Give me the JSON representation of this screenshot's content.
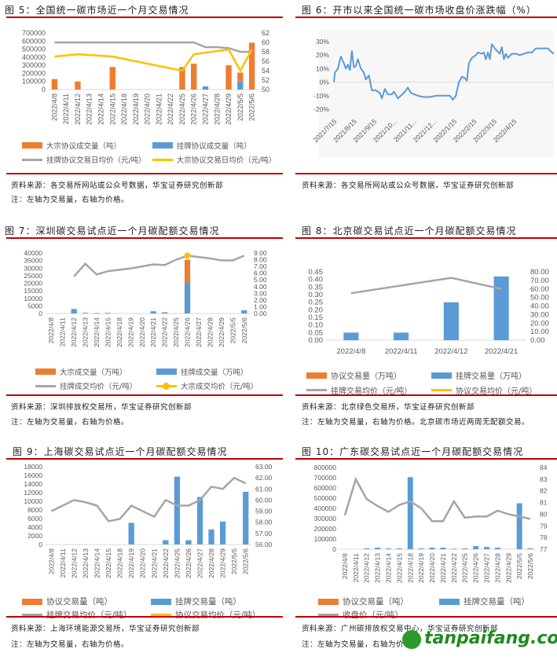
{
  "colors": {
    "orange": "#ED7D31",
    "blue": "#5B9BD5",
    "gray": "#A5A5A5",
    "yellow": "#FFC000",
    "rule": "#C00000"
  },
  "watermark": "tanpaifang.com",
  "chart_data": [
    {
      "id": "fig5",
      "type": "bar",
      "title": "图 5：全国统一碳市场近一个月交易情况",
      "categories": [
        "2022/4/8",
        "2022/4/11",
        "2022/4/12",
        "2022/4/13",
        "2022/4/14",
        "2022/4/15",
        "2022/4/18",
        "2022/4/19",
        "2022/4/20",
        "2022/4/21",
        "2022/4/22",
        "2022/4/25",
        "2022/4/26",
        "2022/4/27",
        "2022/4/28",
        "2022/4/29",
        "2022/5/5",
        "2022/5/6"
      ],
      "left_axis": {
        "range": [
          0,
          700000
        ],
        "ticks": [
          "0",
          "100000",
          "200000",
          "300000",
          "400000",
          "500000",
          "600000",
          "700000"
        ]
      },
      "right_axis": {
        "range": [
          50,
          62
        ],
        "ticks": [
          "50",
          "52",
          "54",
          "56",
          "58",
          "60",
          "62"
        ]
      },
      "bars": [
        {
          "name": "大宗协议成交量（吨）",
          "color": "#ED7D31",
          "values": [
            130000,
            null,
            100000,
            null,
            null,
            280000,
            null,
            null,
            null,
            null,
            null,
            280000,
            320000,
            null,
            null,
            300000,
            110000,
            580000
          ]
        },
        {
          "name": "挂牌协议成交量（吨）",
          "color": "#5B9BD5",
          "values": [
            null,
            null,
            null,
            null,
            null,
            null,
            null,
            null,
            null,
            null,
            null,
            null,
            null,
            40000,
            null,
            null,
            100000,
            null
          ]
        }
      ],
      "lines": [
        {
          "name": "挂牌协议交易日均价（元/吨）",
          "color": "#A5A5A5",
          "values": [
            60,
            60,
            60,
            60,
            60,
            60,
            60,
            60,
            60,
            60,
            60,
            60,
            60,
            59,
            59,
            58.8,
            58,
            58
          ]
        },
        {
          "name": "大宗协议交易日均价（元/吨）",
          "color": "#FFC000",
          "values": [
            57,
            null,
            57.5,
            null,
            null,
            57,
            null,
            null,
            null,
            null,
            null,
            54,
            57.5,
            null,
            null,
            58.5,
            54,
            58.5
          ]
        }
      ],
      "source": "资料来源：各交易所网站或公众号数据，华宝证券研究创新部",
      "note": "注：左轴为交易量，右轴为价格。"
    },
    {
      "id": "fig6",
      "type": "line",
      "title": "图 6：开市以来全国统一碳市场收盘价涨跌幅（%）",
      "x_ticks": [
        "2021/7/15",
        "2021/8/15",
        "2021/9/15",
        "2021/10...",
        "2021/11...",
        "2021/12...",
        "2022/1/15",
        "2022/2/15",
        "2022/3/15",
        "2022/4/15"
      ],
      "y_axis": {
        "range": [
          -20,
          30
        ],
        "ticks": [
          "-20%",
          "-10%",
          "0%",
          "10%",
          "20%",
          "30%"
        ]
      },
      "series": [
        {
          "name": "收盘价涨跌幅",
          "color": "#5B9BD5",
          "x_unit": "months since 2021/7/15",
          "points": [
            [
              0,
              0
            ],
            [
              0.05,
              7
            ],
            [
              0.2,
              10
            ],
            [
              0.35,
              19
            ],
            [
              0.5,
              14
            ],
            [
              0.6,
              10
            ],
            [
              0.7,
              13
            ],
            [
              0.8,
              9
            ],
            [
              0.9,
              23
            ],
            [
              1.0,
              11
            ],
            [
              1.1,
              12
            ],
            [
              1.2,
              17
            ],
            [
              1.35,
              10
            ],
            [
              1.5,
              7
            ],
            [
              1.6,
              2
            ],
            [
              1.75,
              5
            ],
            [
              1.9,
              -6
            ],
            [
              2.1,
              -6
            ],
            [
              2.3,
              -8
            ],
            [
              2.4,
              -12
            ],
            [
              2.55,
              -5
            ],
            [
              2.7,
              -9
            ],
            [
              2.9,
              -9
            ],
            [
              3.0,
              -7
            ],
            [
              3.2,
              -12
            ],
            [
              3.5,
              -8
            ],
            [
              3.7,
              -4
            ],
            [
              3.85,
              -8
            ],
            [
              4.2,
              -10
            ],
            [
              4.5,
              -11
            ],
            [
              4.8,
              -11
            ],
            [
              5.1,
              -10
            ],
            [
              5.5,
              -10
            ],
            [
              5.8,
              -10
            ],
            [
              5.95,
              -13
            ],
            [
              6.1,
              -10
            ],
            [
              6.25,
              0
            ],
            [
              6.4,
              4
            ],
            [
              6.55,
              3
            ],
            [
              6.65,
              1
            ],
            [
              6.75,
              14
            ],
            [
              6.9,
              18
            ],
            [
              7.1,
              20
            ],
            [
              7.2,
              22
            ],
            [
              7.4,
              21
            ],
            [
              7.5,
              22
            ],
            [
              7.6,
              17
            ],
            [
              7.7,
              22
            ],
            [
              7.8,
              17
            ],
            [
              7.9,
              28
            ],
            [
              8.1,
              24
            ],
            [
              8.3,
              21
            ],
            [
              8.4,
              26
            ],
            [
              8.5,
              17
            ],
            [
              8.6,
              21
            ],
            [
              8.7,
              18
            ],
            [
              8.9,
              21
            ],
            [
              9.1,
              21
            ],
            [
              9.3,
              20
            ],
            [
              9.5,
              21
            ],
            [
              9.7,
              22
            ],
            [
              9.9,
              22
            ],
            [
              10.1,
              25
            ],
            [
              10.4,
              25
            ],
            [
              10.7,
              25
            ],
            [
              10.9,
              22
            ],
            [
              11.0,
              21
            ]
          ]
        }
      ],
      "source": "资料来源：各交易所网站或公众号数据，华宝证券研究创新部"
    },
    {
      "id": "fig7",
      "type": "bar",
      "title": "图 7：深圳碳交易试点近一个月碳配额交易情况",
      "categories": [
        "2022/4/8",
        "2022/4/11",
        "2022/4/12",
        "2022/4/13",
        "2022/4/14",
        "2022/4/15",
        "2022/4/18",
        "2022/4/19",
        "2022/4/20",
        "2022/4/21",
        "2022/4/22",
        "2022/4/25",
        "2022/4/26",
        "2022/4/27",
        "2022/4/28",
        "2022/4/29",
        "2022/5/5",
        "2022/5/6"
      ],
      "left_axis": {
        "range": [
          0,
          40000
        ],
        "ticks": [
          "0",
          "5000",
          "10000",
          "15000",
          "20000",
          "25000",
          "30000",
          "35000",
          "40000"
        ]
      },
      "right_axis": {
        "range": [
          0,
          9
        ],
        "ticks": [
          "0.00",
          "1.00",
          "2.00",
          "3.00",
          "4.00",
          "5.00",
          "6.00",
          "7.00",
          "8.00",
          "9.00"
        ]
      },
      "bars": [
        {
          "name": "大宗成交量（万吨）",
          "color": "#ED7D31",
          "values": [
            null,
            null,
            null,
            null,
            null,
            null,
            null,
            null,
            null,
            null,
            null,
            null,
            15000,
            null,
            null,
            null,
            null,
            null
          ]
        },
        {
          "name": "挂牌成交量（万吨）",
          "color": "#5B9BD5",
          "values": [
            null,
            null,
            3000,
            500,
            300,
            400,
            null,
            null,
            null,
            1500,
            800,
            null,
            20500,
            null,
            null,
            null,
            null,
            2200
          ]
        }
      ],
      "lines": [
        {
          "name": "挂牌成交均价（元/吨）",
          "color": "#A5A5A5",
          "values": [
            null,
            null,
            5.5,
            7.4,
            5.8,
            6.3,
            6.5,
            6.7,
            7.0,
            7.3,
            7.2,
            8.0,
            8.6,
            8.4,
            8.2,
            7.9,
            7.9,
            8.6
          ]
        },
        {
          "name": "大宗成交均价（元/吨）",
          "color": "#FFC000",
          "marker": true,
          "values": [
            null,
            null,
            null,
            null,
            null,
            null,
            null,
            null,
            null,
            null,
            null,
            null,
            8.6,
            null,
            null,
            null,
            null,
            null
          ]
        }
      ],
      "source": "资料来源：深圳排放权交易所，华宝证券研究创新部",
      "note": "注：左轴为交易量，右轴为价格。"
    },
    {
      "id": "fig8",
      "type": "bar",
      "title": "图 8：北京碳交易试点近一个月碳配额交易情况",
      "categories": [
        "2022/4/8",
        "2022/4/11",
        "2022/4/12",
        "2022/4/21"
      ],
      "left_axis": {
        "range": [
          0,
          0.45
        ],
        "ticks": [
          "0.00",
          "0.05",
          "0.10",
          "0.15",
          "0.20",
          "0.25",
          "0.30",
          "0.35",
          "0.40",
          "0.45"
        ]
      },
      "right_axis": {
        "range": [
          0,
          80
        ],
        "ticks": [
          "0.00",
          "10.00",
          "20.00",
          "30.00",
          "40.00",
          "50.00",
          "60.00",
          "70.00",
          "80.00"
        ]
      },
      "bars": [
        {
          "name": "协议交易量（万吨）",
          "color": "#ED7D31",
          "values": [
            null,
            null,
            null,
            null
          ]
        },
        {
          "name": "挂牌交易量（万吨）",
          "color": "#5B9BD5",
          "values": [
            0.05,
            0.05,
            0.25,
            0.42
          ]
        }
      ],
      "lines": [
        {
          "name": "挂牌交易均价（元/吨）",
          "color": "#A5A5A5",
          "values": [
            55,
            64,
            73,
            60
          ]
        },
        {
          "name": "协议交易均价（元/吨）",
          "color": "#FFC000",
          "values": [
            null,
            null,
            null,
            null
          ]
        }
      ],
      "source": "资料来源：北京绿色交易所，华宝证券研究创新部",
      "note": "注：左轴为交易量，右轴为价格。北京碳市场近两周无配额交易。"
    },
    {
      "id": "fig9",
      "type": "bar",
      "title": "图 9：上海碳交易试点近一个月碳配额交易情况",
      "categories": [
        "2022/4/8",
        "2022/4/11",
        "2022/4/12",
        "2022/4/13",
        "2022/4/14",
        "2022/4/15",
        "2022/4/18",
        "2022/4/19",
        "2022/4/20",
        "2022/4/21",
        "2022/4/22",
        "2022/4/25",
        "2022/4/26",
        "2022/4/27",
        "2022/4/28",
        "2022/4/29",
        "2022/5/5",
        "2022/5/6"
      ],
      "left_axis": {
        "range": [
          0,
          18000
        ],
        "ticks": [
          "0",
          "2000",
          "4000",
          "6000",
          "8000",
          "10000",
          "12000",
          "14000",
          "16000",
          "18000"
        ]
      },
      "right_axis": {
        "range": [
          56,
          63
        ],
        "ticks": [
          "56.00",
          "57.00",
          "58.00",
          "59.00",
          "60.00",
          "61.00",
          "62.00",
          "63.00"
        ]
      },
      "bars": [
        {
          "name": "协议交易量（吨）",
          "color": "#ED7D31",
          "values": [
            null,
            null,
            null,
            null,
            null,
            null,
            null,
            null,
            null,
            null,
            null,
            null,
            null,
            null,
            null,
            null,
            null,
            null
          ]
        },
        {
          "name": "挂牌交易量（吨）",
          "color": "#5B9BD5",
          "values": [
            null,
            null,
            null,
            null,
            null,
            null,
            null,
            5000,
            null,
            null,
            1000,
            15700,
            1000,
            11000,
            3500,
            5300,
            null,
            12200
          ]
        }
      ],
      "lines": [
        {
          "name": "挂牌交易均价（元/吨）",
          "color": "#A5A5A5",
          "values": [
            59.0,
            59.5,
            60.0,
            59.8,
            59.5,
            58.1,
            58.3,
            59.5,
            59.0,
            58.5,
            60.0,
            59.5,
            59.5,
            60.0,
            61.2,
            61.0,
            62.0,
            61.5
          ]
        },
        {
          "name": "协议交易均价（元/吨）",
          "color": "#FFC000",
          "values": [
            null,
            null,
            null,
            null,
            null,
            null,
            null,
            null,
            null,
            null,
            null,
            null,
            null,
            null,
            null,
            null,
            null,
            null
          ]
        }
      ],
      "source": "资料来源：上海环境能源交易所，华宝证券研究创新部",
      "note": "注：左轴为交易量，右轴为价格。"
    },
    {
      "id": "fig10",
      "type": "bar",
      "title": "图 10：广东碳交易试点近一个月碳配额交易情况",
      "categories": [
        "2022/4/8",
        "2022/4/11",
        "2022/4/12",
        "2022/4/13",
        "2022/4/14",
        "2022/4/15",
        "2022/4/18",
        "2022/4/19",
        "2022/4/20",
        "2022/4/21",
        "2022/4/22",
        "2022/4/25",
        "2022/4/26",
        "2022/4/27",
        "2022/4/28",
        "2022/4/29",
        "2022/5/5",
        "2022/5/6"
      ],
      "left_axis": {
        "range": [
          0,
          800000
        ],
        "ticks": [
          "0",
          "100000",
          "200000",
          "300000",
          "400000",
          "500000",
          "600000",
          "700000",
          "800000"
        ]
      },
      "right_axis": {
        "range": [
          77,
          84
        ],
        "ticks": [
          "77",
          "78",
          "79",
          "80",
          "81",
          "82",
          "83",
          "84"
        ]
      },
      "bars": [
        {
          "name": "协议交易量（吨）",
          "color": "#ED7D31",
          "values": [
            null,
            null,
            null,
            null,
            null,
            null,
            null,
            null,
            null,
            null,
            null,
            null,
            null,
            null,
            null,
            null,
            null,
            null
          ]
        },
        {
          "name": "挂牌交易量（吨）",
          "color": "#5B9BD5",
          "values": [
            null,
            null,
            8000,
            15000,
            8000,
            8000,
            705000,
            8000,
            15000,
            15000,
            5000,
            8000,
            30000,
            22000,
            15000,
            null,
            450000,
            8000
          ]
        }
      ],
      "lines": [
        {
          "name": "收盘价（元/吨）",
          "color": "#A5A5A5",
          "values": [
            79.9,
            83,
            81.3,
            80.7,
            80.2,
            80.8,
            81.1,
            80.5,
            79.4,
            79.4,
            81.1,
            79.7,
            79.8,
            79.8,
            80.3,
            80.0,
            79.8,
            79.6
          ]
        }
      ],
      "source": "资料来源：广州碳排放权交易中心，华宝证券研究创新部",
      "note": "注：左轴为交易量，右轴为价格。"
    }
  ]
}
